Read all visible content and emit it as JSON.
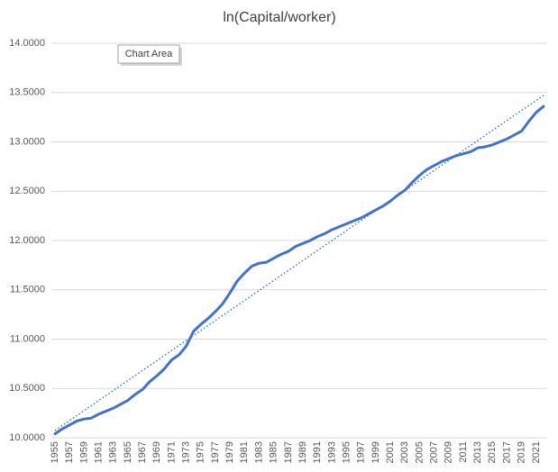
{
  "tooltip": "Chart Area",
  "chart_data": {
    "type": "line",
    "title": "ln(Capital/worker)",
    "categories": [
      "1955",
      null,
      "1957",
      null,
      "1959",
      null,
      "1961",
      null,
      "1963",
      null,
      "1965",
      null,
      "1967",
      null,
      "1969",
      null,
      "1971",
      null,
      "1973",
      null,
      "1975",
      null,
      "1977",
      null,
      "1979",
      null,
      "1981",
      null,
      "1983",
      null,
      "1985",
      null,
      "1987",
      null,
      "1989",
      null,
      "1991",
      null,
      "1993",
      null,
      "1995",
      null,
      "1997",
      null,
      "1999",
      null,
      "2001",
      null,
      "2003",
      null,
      "2005",
      null,
      "2007",
      null,
      "2009",
      null,
      "2011",
      null,
      "2013",
      null,
      "2015",
      null,
      "2017",
      null,
      "2019",
      null,
      "2021",
      null
    ],
    "series": [
      {
        "color": "#4472c4",
        "values": [
          10.04,
          10.09,
          10.13,
          10.17,
          10.19,
          10.2,
          10.24,
          10.27,
          10.3,
          10.34,
          10.38,
          10.44,
          10.49,
          10.57,
          10.63,
          10.7,
          10.79,
          10.84,
          10.93,
          11.08,
          11.15,
          11.21,
          11.28,
          11.36,
          11.47,
          11.59,
          11.67,
          11.74,
          11.77,
          11.78,
          11.82,
          11.86,
          11.89,
          11.94,
          11.97,
          12.0,
          12.04,
          12.07,
          12.11,
          12.14,
          12.17,
          12.2,
          12.23,
          12.27,
          12.31,
          12.35,
          12.4,
          12.46,
          12.51,
          12.59,
          12.66,
          12.72,
          12.76,
          12.8,
          12.83,
          12.86,
          12.88,
          12.9,
          12.94,
          12.95,
          12.97,
          13.0,
          13.03,
          13.07,
          13.11,
          13.21,
          13.3,
          13.36
        ],
        "trendline": "linear"
      }
    ],
    "ylim": [
      10,
      14
    ],
    "yticks": [
      {
        "value": 10,
        "label": "10.0000"
      },
      {
        "value": 10.5,
        "label": "10.5000"
      },
      {
        "value": 11,
        "label": "11.0000"
      },
      {
        "value": 11.5,
        "label": "11.5000"
      },
      {
        "value": 12,
        "label": "12.0000"
      },
      {
        "value": 12.5,
        "label": "12.5000"
      },
      {
        "value": 13,
        "label": "13.0000"
      },
      {
        "value": 13.5,
        "label": "13.5000"
      },
      {
        "value": 14,
        "label": "14.0000"
      }
    ],
    "grid": true
  }
}
